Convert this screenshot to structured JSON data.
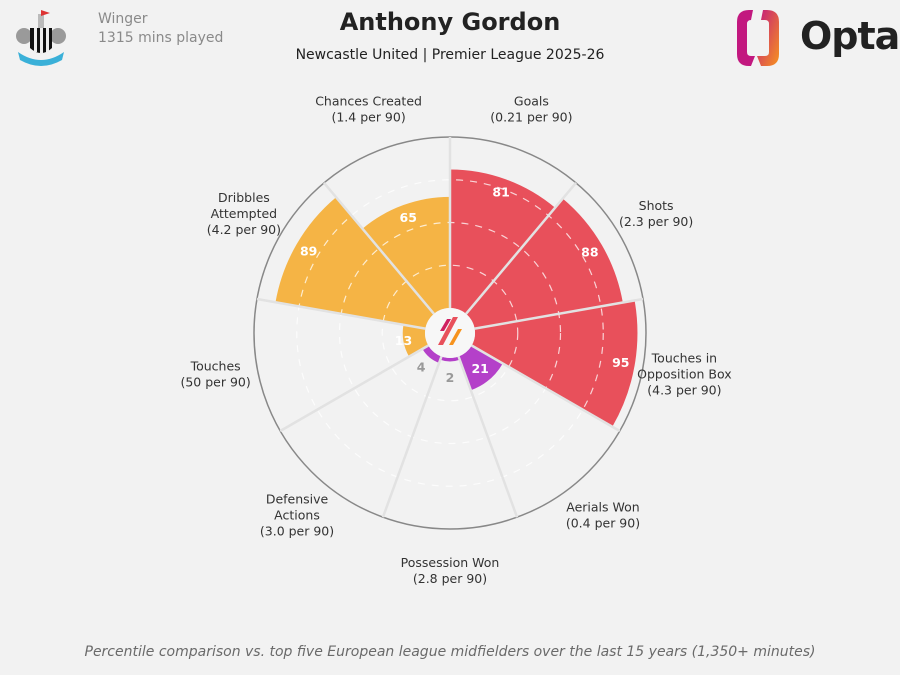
{
  "header": {
    "position": "Winger",
    "minutes": "1315 mins played",
    "player": "Anthony Gordon",
    "subtitle": "Newcastle United | Premier League 2025-26",
    "brand": "Opta",
    "crest_icon": "newcastle-united-crest"
  },
  "footer": "Percentile comparison vs. top five European league midfielders over the last 15 years (1,350+ minutes)",
  "colors": {
    "attacking": "#e8505b",
    "possession": "#f5b445",
    "defending": "#b440c9",
    "background": "#f2f2f2"
  },
  "chart_data": {
    "type": "pizza",
    "scale": [
      0,
      100
    ],
    "grid": true,
    "categories": [
      {
        "name": [
          "Goals"
        ],
        "per90": "(0.21 per 90)",
        "value": 81,
        "group": "attacking"
      },
      {
        "name": [
          "Shots"
        ],
        "per90": "(2.3 per 90)",
        "value": 88,
        "group": "attacking"
      },
      {
        "name": [
          "Touches in",
          "Opposition Box"
        ],
        "per90": "(4.3 per 90)",
        "value": 95,
        "group": "attacking"
      },
      {
        "name": [
          "Aerials Won"
        ],
        "per90": "(0.4 per 90)",
        "value": 21,
        "group": "defending"
      },
      {
        "name": [
          "Possession Won"
        ],
        "per90": "(2.8 per 90)",
        "value": 2,
        "group": "defending"
      },
      {
        "name": [
          "Defensive",
          "Actions"
        ],
        "per90": "(3.0 per 90)",
        "value": 4,
        "group": "defending"
      },
      {
        "name": [
          "Touches"
        ],
        "per90": "(50 per 90)",
        "value": 13,
        "group": "possession"
      },
      {
        "name": [
          "Dribbles",
          "Attempted"
        ],
        "per90": "(4.2 per 90)",
        "value": 89,
        "group": "possession"
      },
      {
        "name": [
          "Chances Created"
        ],
        "per90": "(1.4 per 90)",
        "value": 65,
        "group": "possession"
      }
    ]
  }
}
